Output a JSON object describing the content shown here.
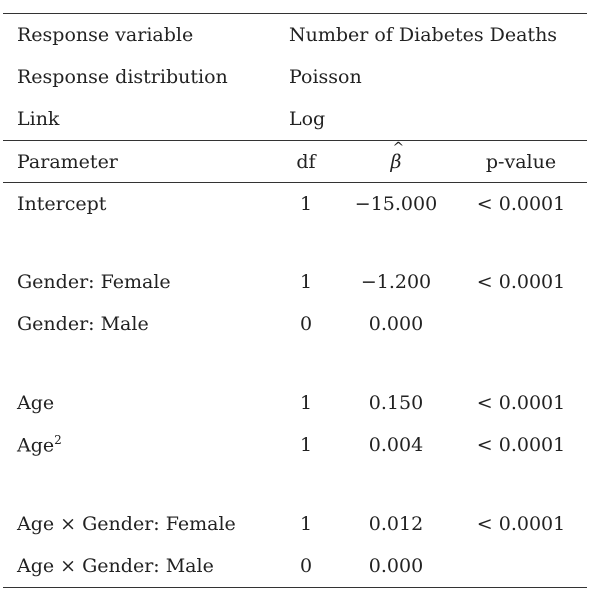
{
  "meta": [
    {
      "label": "Response variable",
      "value": "Number of Diabetes Deaths"
    },
    {
      "label": "Response distribution",
      "value": "Poisson"
    },
    {
      "label": "Link",
      "value": "Log"
    }
  ],
  "header": {
    "parameter": "Parameter",
    "df": "df",
    "beta_symbol": "β",
    "pvalue": "p-value"
  },
  "rows": [
    {
      "parameter": "Intercept",
      "df": "1",
      "beta": "−15.000",
      "pvalue": "< 0.0001"
    },
    {
      "parameter": "Gender: Female",
      "df": "1",
      "beta": "−1.200",
      "pvalue": "< 0.0001"
    },
    {
      "parameter": "Gender: Male",
      "df": "0",
      "beta": "0.000",
      "pvalue": ""
    },
    {
      "parameter": "Age",
      "df": "1",
      "beta": "0.150",
      "pvalue": "< 0.0001"
    },
    {
      "parameter": "Age",
      "parameter_sup": "2",
      "df": "1",
      "beta": "0.004",
      "pvalue": "< 0.0001"
    },
    {
      "parameter": "Age × Gender: Female",
      "df": "1",
      "beta": "0.012",
      "pvalue": "< 0.0001"
    },
    {
      "parameter": "Age × Gender: Male",
      "df": "0",
      "beta": "0.000",
      "pvalue": ""
    }
  ]
}
